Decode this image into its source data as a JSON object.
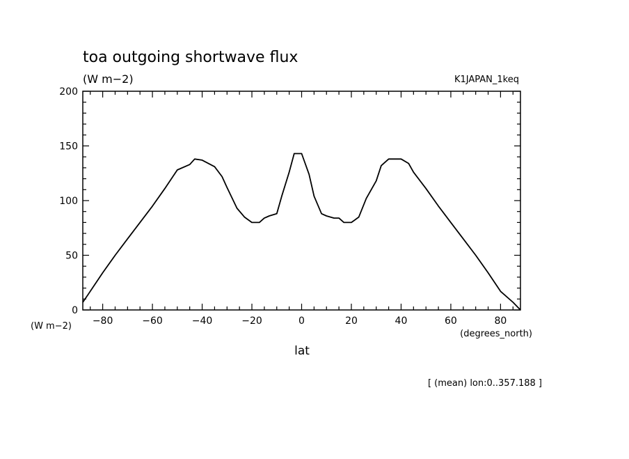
{
  "chart_data": {
    "type": "line",
    "title": "toa outgoing shortwave flux",
    "units": "(W m−2)",
    "yunits_label": "(W m−2)",
    "run_label": "K1JAPAN_1keq",
    "xlabel": "lat",
    "xunits_label": "(degrees_north)",
    "footer": "[ (mean) lon:0..357.188 ]",
    "xlim": [
      -88,
      88
    ],
    "ylim": [
      0,
      200
    ],
    "xticks": [
      -80,
      -60,
      -40,
      -20,
      0,
      20,
      40,
      60,
      80
    ],
    "xtick_labels": [
      "−80",
      "−60",
      "−40",
      "−20",
      "0",
      "20",
      "40",
      "60",
      "80"
    ],
    "yticks": [
      0,
      50,
      100,
      150,
      200
    ],
    "ytick_labels": [
      "0",
      "50",
      "100",
      "150",
      "200"
    ],
    "grid": false,
    "line_color": "#000000",
    "series": [
      {
        "x": [
          -88,
          -85,
          -80,
          -75,
          -70,
          -65,
          -60,
          -55,
          -50,
          -45,
          -43,
          -40,
          -35,
          -32,
          -30,
          -26,
          -23,
          -20,
          -17,
          -15,
          -13,
          -10,
          -8,
          -5,
          -3,
          0,
          3,
          5,
          8,
          10,
          13,
          15,
          17,
          20,
          23,
          26,
          30,
          32,
          35,
          40,
          43,
          45,
          50,
          55,
          60,
          65,
          70,
          75,
          80,
          85,
          88
        ],
        "y": [
          7,
          17,
          34,
          50,
          65,
          80,
          95,
          111,
          128,
          133,
          138,
          137,
          131,
          122,
          112,
          93,
          85,
          80,
          80,
          84,
          86,
          88,
          104,
          126,
          143,
          143,
          124,
          104,
          88,
          86,
          84,
          84,
          80,
          80,
          85,
          102,
          118,
          132,
          138,
          138,
          134,
          126,
          111,
          95,
          80,
          65,
          50,
          34,
          17,
          7,
          0
        ]
      }
    ]
  }
}
